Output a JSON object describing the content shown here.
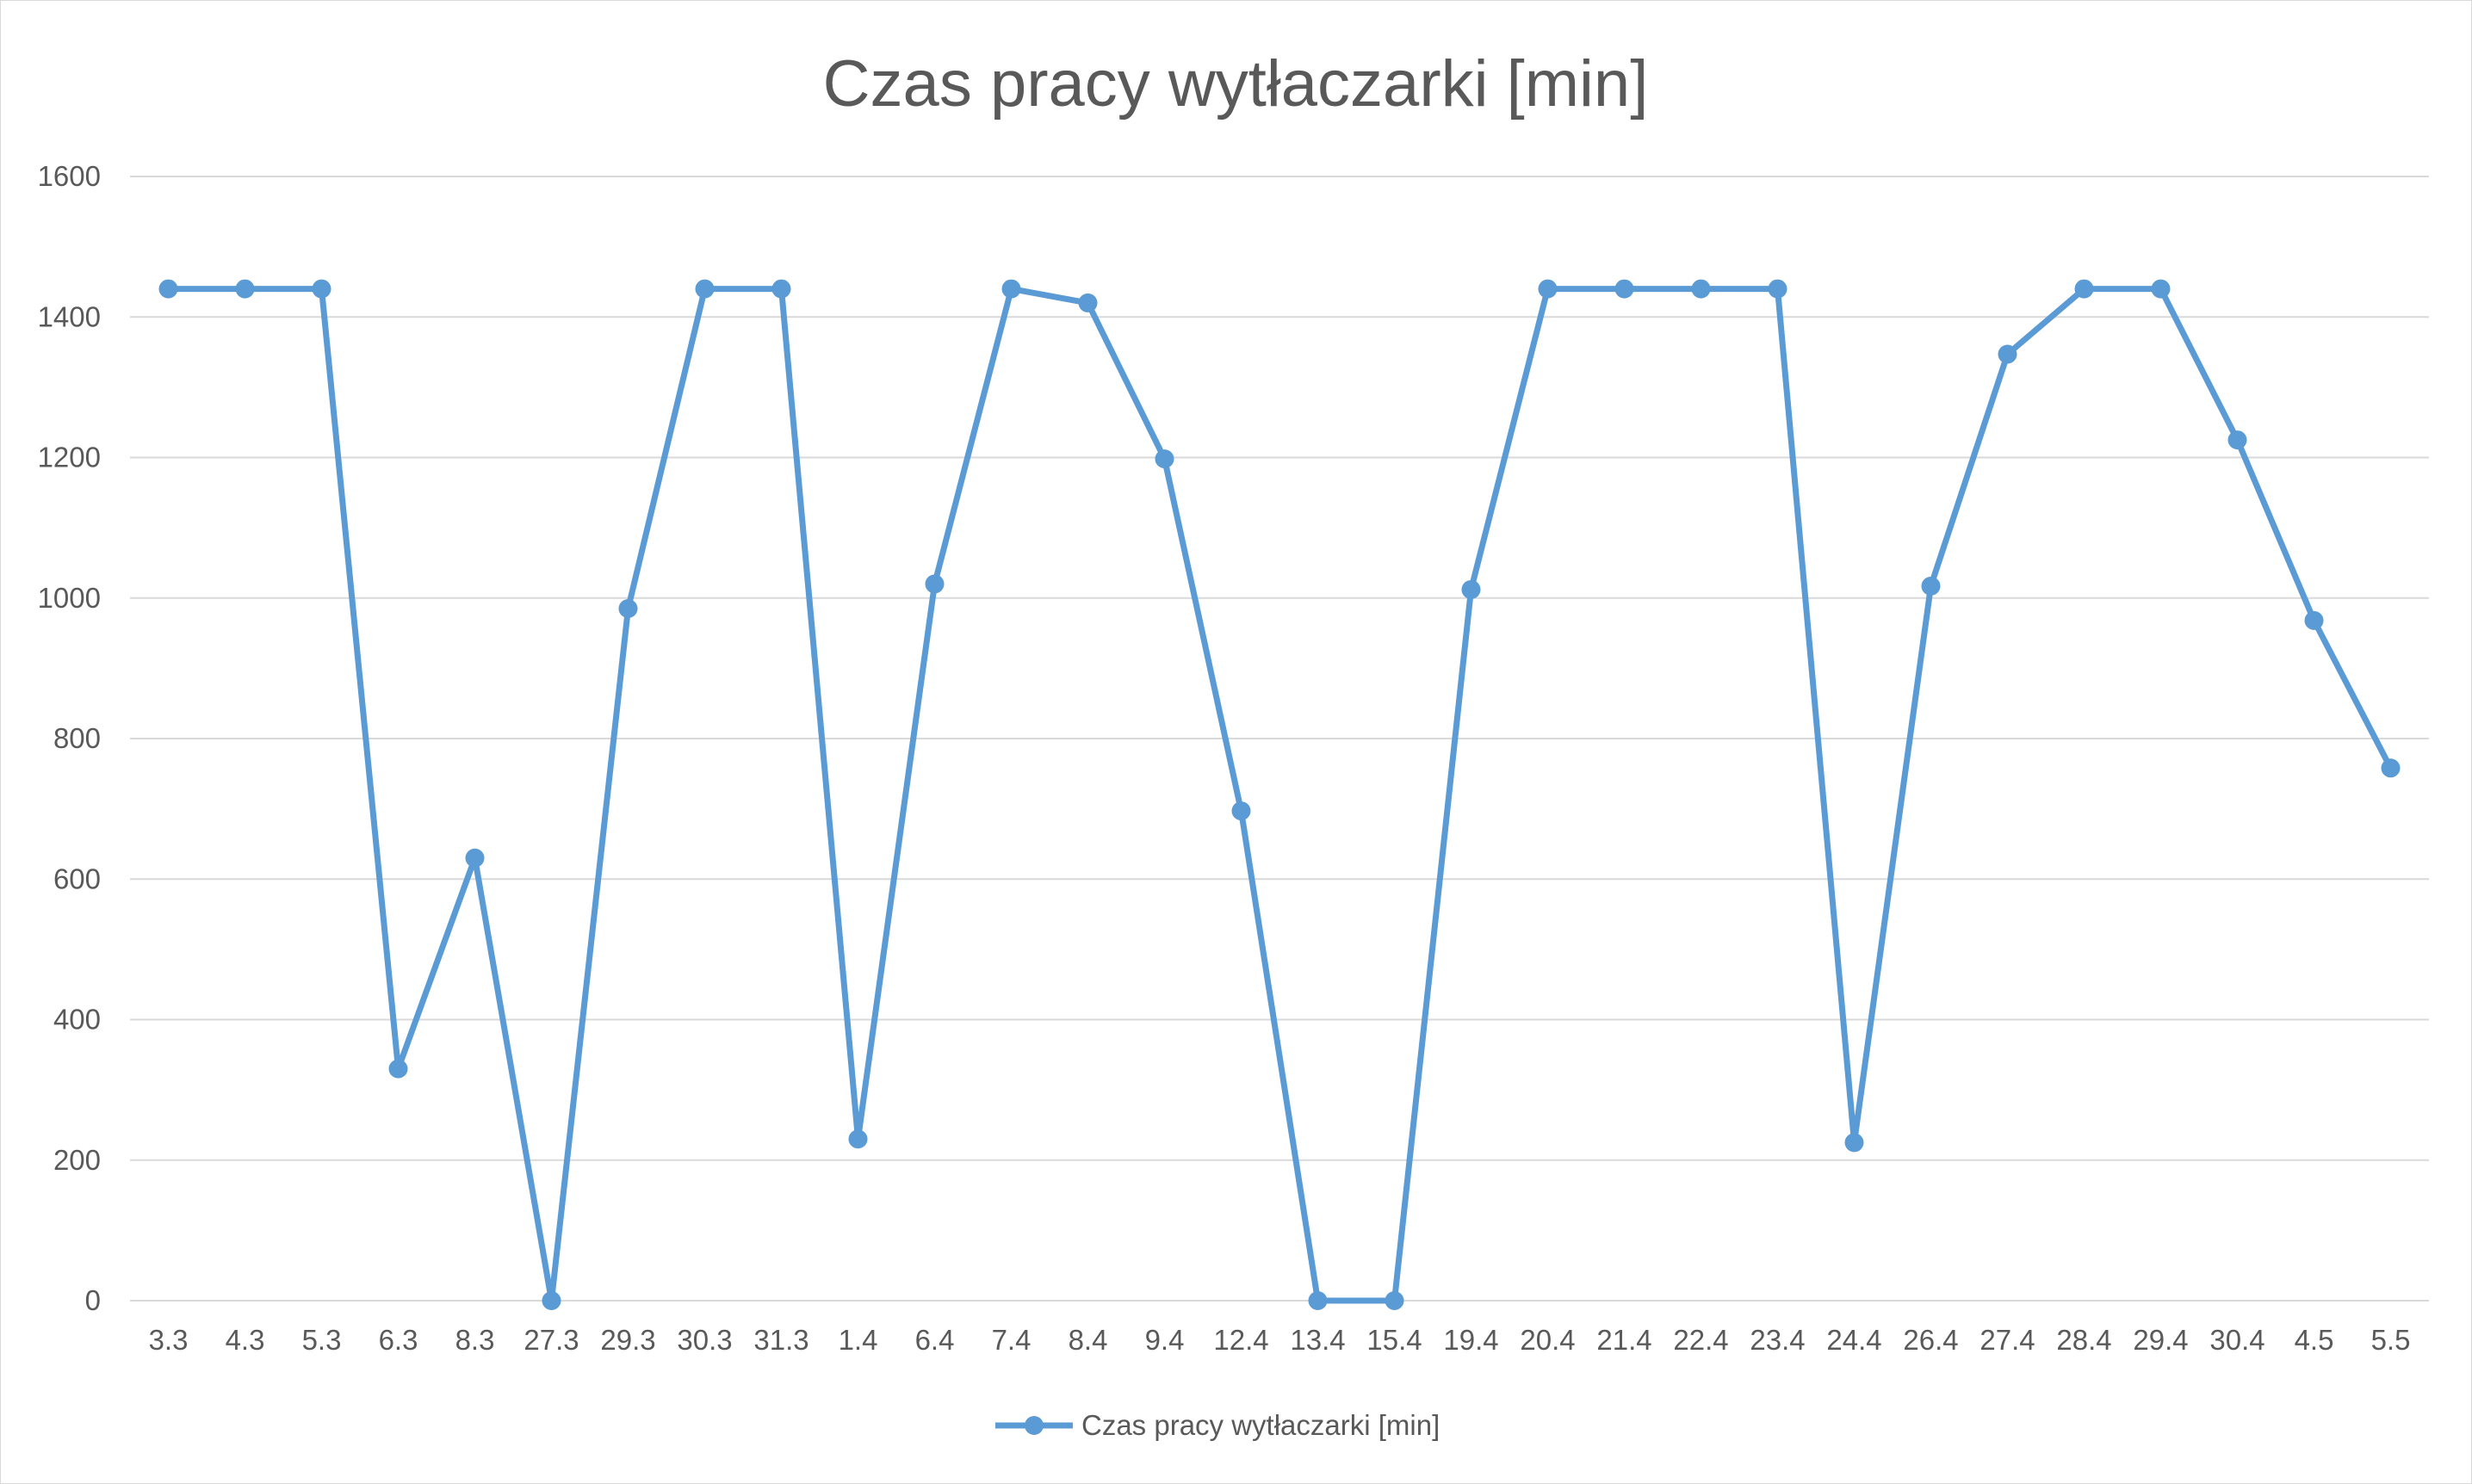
{
  "chart_data": {
    "type": "line",
    "title": "Czas pracy wytłaczarki [min]",
    "xlabel": "",
    "ylabel": "",
    "ylim": [
      0,
      1600
    ],
    "yticks": [
      "0",
      "200",
      "400",
      "600",
      "800",
      "1000",
      "1200",
      "1400",
      "1600"
    ],
    "categories": [
      "3.3",
      "4.3",
      "5.3",
      "6.3",
      "8.3",
      "27.3",
      "29.3",
      "30.3",
      "31.3",
      "1.4",
      "6.4",
      "7.4",
      "8.4",
      "9.4",
      "12.4",
      "13.4",
      "15.4",
      "19.4",
      "20.4",
      "21.4",
      "22.4",
      "23.4",
      "24.4",
      "26.4",
      "27.4",
      "28.4",
      "29.4",
      "30.4",
      "4.5",
      "5.5"
    ],
    "series": [
      {
        "name": "Czas pracy wytłaczarki [min]",
        "color": "#5b9bd5",
        "marker": "circle",
        "values": [
          1440,
          1440,
          1440,
          330,
          630,
          0,
          985,
          1440,
          1440,
          230,
          1020,
          1440,
          1420,
          1198,
          697,
          0,
          0,
          1012,
          1440,
          1440,
          1440,
          1440,
          225,
          1017,
          1347,
          1440,
          1440,
          1225,
          968,
          758
        ]
      }
    ],
    "grid": true,
    "legend_position": "bottom"
  }
}
